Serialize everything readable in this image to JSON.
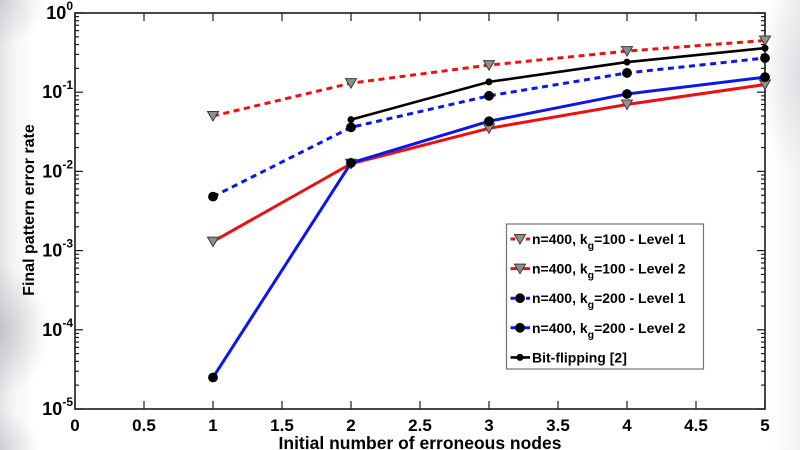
{
  "chart_data": {
    "type": "line",
    "title": "",
    "xlabel": "Initial number of erroneous nodes",
    "ylabel": "Final pattern error rate",
    "xlim": [
      0,
      5
    ],
    "y_scale": "log",
    "ylim": [
      1e-05,
      1
    ],
    "ylog_exponent_range": [
      0,
      -5
    ],
    "x_tick_labels": [
      "0",
      "0.5",
      "1",
      "1.5",
      "2",
      "2.5",
      "3",
      "3.5",
      "4",
      "4.5",
      "5"
    ],
    "y_tick_base": "10",
    "y_tick_exponents": [
      "0",
      "-1",
      "-2",
      "-3",
      "-4",
      "-5"
    ],
    "grid": false,
    "axis_color": "#1a1a1a",
    "legend": {
      "position": "inside middle-right",
      "background": "#ffffff",
      "border_color": "#737373"
    },
    "series": [
      {
        "label": "n=400, kg=100 - Level 1",
        "label_pre": "n=400, k",
        "label_sub": "g",
        "label_post": "=100 - Level 1",
        "color": "#ee1010",
        "line_style": "dashed",
        "marker": "triangle-down",
        "marker_fill": "#8f8f8f",
        "marker_edge": "#3c3c3c",
        "x": [
          1,
          2,
          3,
          4,
          5
        ],
        "y": [
          0.05,
          0.13,
          0.22,
          0.33,
          0.45
        ]
      },
      {
        "label": "n=400, kg=100 - Level 2",
        "label_pre": "n=400, k",
        "label_sub": "g",
        "label_post": "=100 - Level 2",
        "color": "#ee1010",
        "line_style": "solid",
        "marker": "triangle-down",
        "marker_fill": "#8f8f8f",
        "marker_edge": "#3c3c3c",
        "x": [
          1,
          2,
          3,
          4,
          5
        ],
        "y": [
          0.0013,
          0.0125,
          0.035,
          0.07,
          0.125
        ]
      },
      {
        "label": "n=400, kg=200 - Level 1",
        "label_pre": "n=400, k",
        "label_sub": "g",
        "label_post": "=200 - Level 1",
        "color": "#0b16ee",
        "line_style": "dashed",
        "marker": "circle",
        "marker_fill": "#000000",
        "marker_edge": "#000000",
        "x": [
          1,
          2,
          3,
          4,
          5
        ],
        "y": [
          0.0048,
          0.036,
          0.09,
          0.175,
          0.27
        ]
      },
      {
        "label": "n=400, kg=200 - Level 2",
        "label_pre": "n=400, k",
        "label_sub": "g",
        "label_post": "=200 - Level 2",
        "color": "#0b16ee",
        "line_style": "solid",
        "marker": "circle",
        "marker_fill": "#000000",
        "marker_edge": "#000000",
        "x": [
          1,
          2,
          3,
          4,
          5
        ],
        "y": [
          2.5e-05,
          0.0128,
          0.043,
          0.095,
          0.155
        ]
      },
      {
        "label": "Bit-flipping [2]",
        "label_pre": "Bit-flipping [2]",
        "label_sub": "",
        "label_post": "",
        "color": "#000000",
        "line_style": "solid",
        "marker": "dot",
        "marker_fill": "#000000",
        "marker_edge": "#000000",
        "x": [
          2,
          3,
          4,
          5
        ],
        "y": [
          0.045,
          0.135,
          0.24,
          0.36
        ]
      }
    ]
  }
}
